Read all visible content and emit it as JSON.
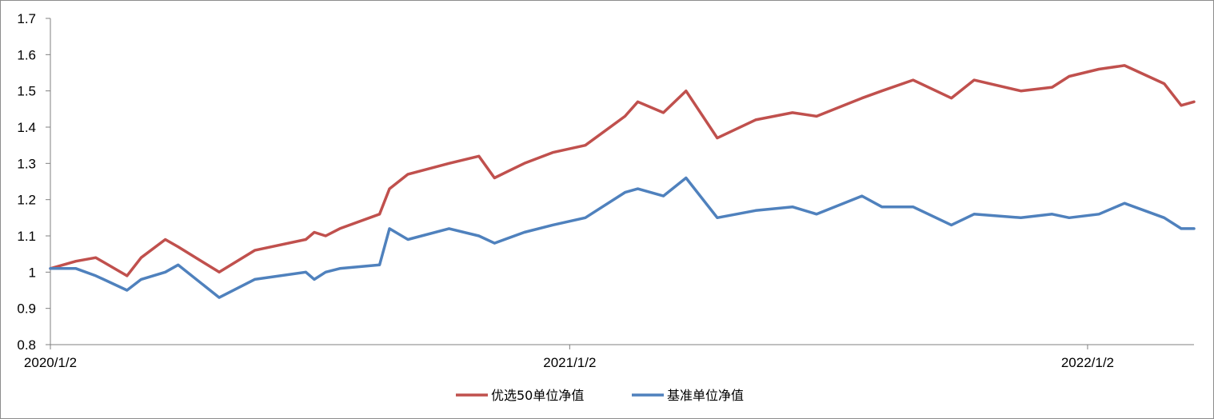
{
  "chart_data": {
    "type": "line",
    "title": "",
    "xlabel": "",
    "ylabel": "",
    "ylim": [
      0.8,
      1.7
    ],
    "y_ticks": [
      "0.8",
      "0.9",
      "1",
      "1.1",
      "1.2",
      "1.3",
      "1.4",
      "1.5",
      "1.6",
      "1.7"
    ],
    "x_tick_labels": [
      "2020/1/2",
      "2021/1/2",
      "2022/1/2"
    ],
    "x_tick_dates": [
      "2020-01-02",
      "2021-01-02",
      "2022-01-02"
    ],
    "xlim": [
      "2020-01-02",
      "2022-03-18"
    ],
    "grid": false,
    "legend": "bottom",
    "x": [
      "2020-01-02",
      "2020-01-20",
      "2020-02-03",
      "2020-02-25",
      "2020-03-06",
      "2020-03-23",
      "2020-04-01",
      "2020-04-30",
      "2020-05-25",
      "2020-06-30",
      "2020-07-06",
      "2020-07-14",
      "2020-07-24",
      "2020-08-21",
      "2020-08-28",
      "2020-09-10",
      "2020-10-09",
      "2020-10-30",
      "2020-11-10",
      "2020-12-01",
      "2020-12-21",
      "2021-01-13",
      "2021-02-10",
      "2021-02-19",
      "2021-03-09",
      "2021-03-25",
      "2021-04-16",
      "2021-05-13",
      "2021-06-08",
      "2021-06-25",
      "2021-07-27",
      "2021-08-10",
      "2021-09-01",
      "2021-09-28",
      "2021-10-14",
      "2021-11-16",
      "2021-12-08",
      "2021-12-20",
      "2022-01-10",
      "2022-01-28",
      "2022-02-25",
      "2022-03-09",
      "2022-03-18"
    ],
    "series": [
      {
        "name": "优选50单位净值",
        "color": "#c0504d",
        "values": [
          1.01,
          1.03,
          1.04,
          0.99,
          1.04,
          1.09,
          1.07,
          1.0,
          1.06,
          1.09,
          1.11,
          1.1,
          1.12,
          1.16,
          1.23,
          1.27,
          1.3,
          1.32,
          1.26,
          1.3,
          1.33,
          1.35,
          1.43,
          1.47,
          1.44,
          1.5,
          1.37,
          1.42,
          1.44,
          1.43,
          1.48,
          1.5,
          1.53,
          1.48,
          1.53,
          1.5,
          1.51,
          1.54,
          1.56,
          1.57,
          1.52,
          1.46,
          1.47
        ]
      },
      {
        "name": "基准单位净值",
        "color": "#4f81bd",
        "values": [
          1.01,
          1.01,
          0.99,
          0.95,
          0.98,
          1.0,
          1.02,
          0.93,
          0.98,
          1.0,
          0.98,
          1.0,
          1.01,
          1.02,
          1.12,
          1.09,
          1.12,
          1.1,
          1.08,
          1.11,
          1.13,
          1.15,
          1.22,
          1.23,
          1.21,
          1.26,
          1.15,
          1.17,
          1.18,
          1.16,
          1.21,
          1.18,
          1.18,
          1.13,
          1.16,
          1.15,
          1.16,
          1.15,
          1.16,
          1.19,
          1.15,
          1.12,
          1.12
        ]
      }
    ]
  }
}
